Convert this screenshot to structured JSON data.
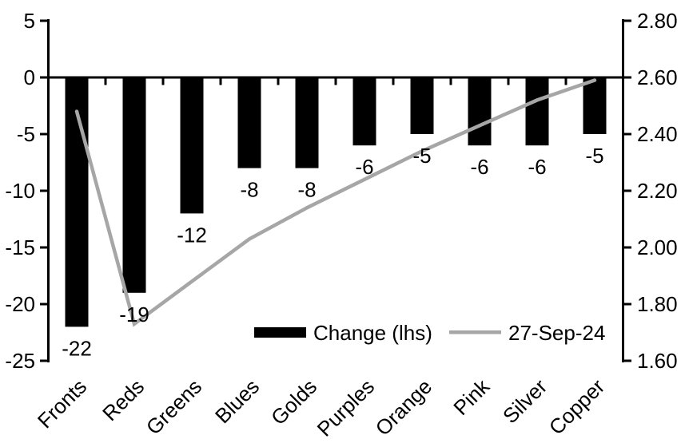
{
  "chart_data": {
    "type": "bar",
    "subtype": "combo-bar-line",
    "title": "",
    "xlabel": "",
    "ylabel": "",
    "categories": [
      "Fronts",
      "Reds",
      "Greens",
      "Blues",
      "Golds",
      "Purples",
      "Orange",
      "Pink",
      "Silver",
      "Copper"
    ],
    "series": [
      {
        "name": "Change (lhs)",
        "type": "bar",
        "axis": "left",
        "color": "#000000",
        "values": [
          -22,
          -19,
          -12,
          -8,
          -8,
          -6,
          -5,
          -6,
          -6,
          -5
        ],
        "data_labels": [
          "-22",
          "-19",
          "-12",
          "-8",
          "-8",
          "-6",
          "-5",
          "-6",
          "-6",
          "-5"
        ]
      },
      {
        "name": "27-Sep-24",
        "type": "line",
        "axis": "right",
        "color": "#a6a6a6",
        "values": [
          2.48,
          1.73,
          1.88,
          2.03,
          2.14,
          2.24,
          2.34,
          2.43,
          2.52,
          2.59
        ]
      }
    ],
    "left_axis": {
      "min": -25,
      "max": 5,
      "step": 5,
      "tick_labels": [
        "5",
        "0",
        "-5",
        "-10",
        "-15",
        "-20",
        "-25"
      ]
    },
    "right_axis": {
      "min": 1.6,
      "max": 2.8,
      "step": 0.2,
      "tick_labels": [
        "2.80",
        "2.60",
        "2.40",
        "2.20",
        "2.00",
        "1.80",
        "1.60"
      ]
    },
    "legend": {
      "position": "bottom-inside",
      "entries": [
        {
          "label": "Change (lhs)",
          "swatch": "bar",
          "color": "#000000"
        },
        {
          "label": "27-Sep-24",
          "swatch": "line",
          "color": "#a6a6a6"
        }
      ]
    },
    "grid": false,
    "background": "#ffffff",
    "text_color": "#000000"
  }
}
